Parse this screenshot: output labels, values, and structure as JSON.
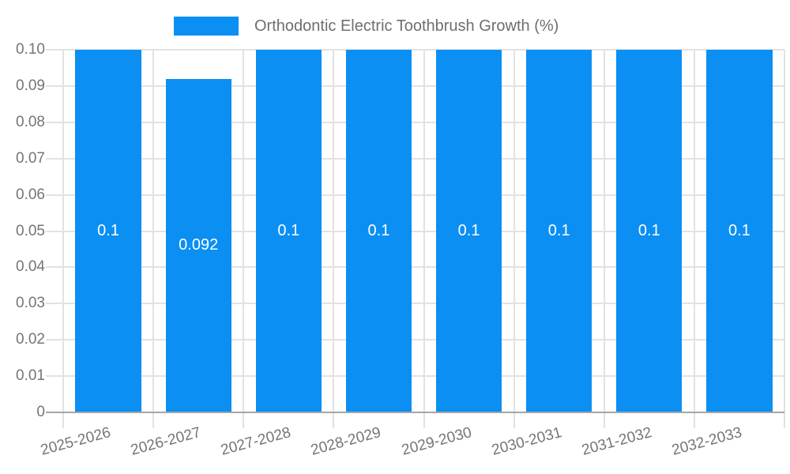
{
  "legend": {
    "label": "Orthodontic Electric Toothbrush Growth (%)"
  },
  "chart_data": {
    "type": "bar",
    "title": "Orthodontic Electric Toothbrush Growth (%)",
    "legend_entries": [
      "Orthodontic Electric Toothbrush Growth (%)"
    ],
    "legend_position": "top",
    "categories": [
      "2025-2026",
      "2026-2027",
      "2027-2028",
      "2028-2029",
      "2029-2030",
      "2030-2031",
      "2031-2032",
      "2032-2033"
    ],
    "values": [
      0.1,
      0.092,
      0.1,
      0.1,
      0.1,
      0.1,
      0.1,
      0.1
    ],
    "bar_value_labels": [
      "0.1",
      "0.092",
      "0.1",
      "0.1",
      "0.1",
      "0.1",
      "0.1",
      "0.1"
    ],
    "xlabel": "",
    "ylabel": "",
    "ylim": [
      0,
      0.1
    ],
    "y_tick_step": 0.01,
    "y_tick_labels": [
      "0.10",
      "0.09",
      "0.08",
      "0.07",
      "0.06",
      "0.05",
      "0.04",
      "0.03",
      "0.02",
      "0.01",
      "0"
    ],
    "grid": true,
    "x_tick_rotation_deg": -15,
    "colors": {
      "bar": "#0b8ff3",
      "gridline": "#e2e2e2",
      "axis_line": "#a6a6a6",
      "axis_text": "#757575",
      "legend_text": "#6e6e6e",
      "bar_label": "#ffffff",
      "background": "#ffffff"
    }
  }
}
